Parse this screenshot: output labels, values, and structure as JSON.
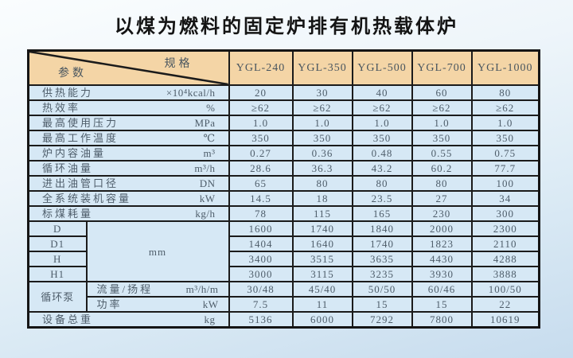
{
  "title": "以煤为燃料的固定炉排有机热载体炉",
  "table": {
    "corner": {
      "spec": "规格",
      "param": "参数"
    },
    "models": [
      "YGL-240",
      "YGL-350",
      "YGL-500",
      "YGL-700",
      "YGL-1000"
    ],
    "rows": [
      {
        "label": "供热能力",
        "unit": "×10⁴kcal/h",
        "values": [
          "20",
          "30",
          "40",
          "60",
          "80"
        ]
      },
      {
        "label": "热效率",
        "unit": "%",
        "values": [
          "≥62",
          "≥62",
          "≥62",
          "≥62",
          "≥62"
        ]
      },
      {
        "label": "最高使用压力",
        "unit": "MPa",
        "values": [
          "1.0",
          "1.0",
          "1.0",
          "1.0",
          "1.0"
        ]
      },
      {
        "label": "最高工作温度",
        "unit": "℃",
        "values": [
          "350",
          "350",
          "350",
          "350",
          "350"
        ]
      },
      {
        "label": "炉内容油量",
        "unit": "m³",
        "values": [
          "0.27",
          "0.36",
          "0.48",
          "0.55",
          "0.75"
        ]
      },
      {
        "label": "循环油量",
        "unit": "m³/h",
        "values": [
          "28.6",
          "36.3",
          "43.2",
          "60.2",
          "77.7"
        ]
      },
      {
        "label": "进出油管口径",
        "unit": "DN",
        "values": [
          "65",
          "80",
          "80",
          "80",
          "100"
        ]
      },
      {
        "label": "全系统装机容量",
        "unit": "kW",
        "values": [
          "14.5",
          "18",
          "23.5",
          "27",
          "34"
        ]
      },
      {
        "label": "标煤耗量",
        "unit": "kg/h",
        "values": [
          "78",
          "115",
          "165",
          "230",
          "300"
        ]
      }
    ],
    "dimensions": {
      "unit": "mm",
      "rows": [
        {
          "label": "D",
          "values": [
            "1600",
            "1740",
            "1840",
            "2000",
            "2300"
          ]
        },
        {
          "label": "D1",
          "values": [
            "1404",
            "1640",
            "1740",
            "1823",
            "2110"
          ]
        },
        {
          "label": "H",
          "values": [
            "3400",
            "3515",
            "3635",
            "4430",
            "4288"
          ]
        },
        {
          "label": "H1",
          "values": [
            "3000",
            "3115",
            "3235",
            "3930",
            "3888"
          ]
        }
      ]
    },
    "pump": {
      "label": "循环泵",
      "rows": [
        {
          "label": "流量/扬程",
          "unit": "m³/h/m",
          "values": [
            "30/48",
            "45/40",
            "50/50",
            "60/46",
            "100/50"
          ]
        },
        {
          "label": "功率",
          "unit": "kW",
          "values": [
            "7.5",
            "11",
            "15",
            "15",
            "22"
          ]
        }
      ]
    },
    "total": {
      "label": "设备总重",
      "unit": "kg",
      "values": [
        "5136",
        "6000",
        "7292",
        "7800",
        "10619"
      ]
    }
  },
  "colors": {
    "header_bg": "#f4d5a6",
    "cell_bg": "#d6e8f5",
    "border": "#1b1b1b",
    "table_text": "#4e5d6a",
    "title_text": "#141414",
    "page_bg_top": "#fafdfe",
    "page_bg_bottom": "#c7dcee"
  }
}
